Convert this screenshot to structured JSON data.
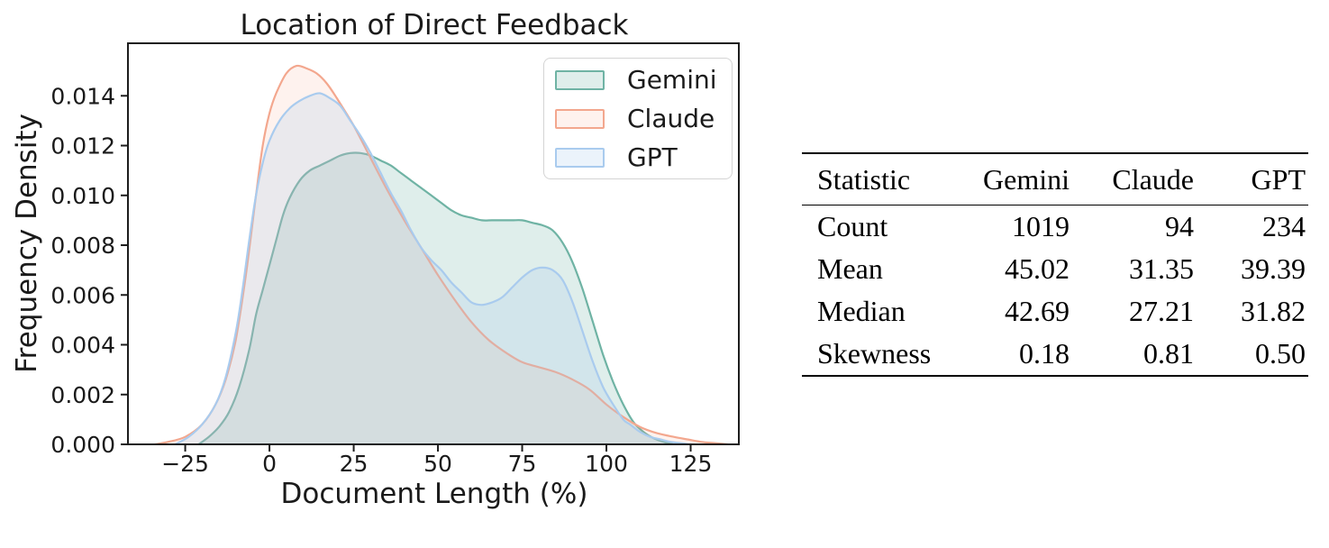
{
  "chart_data": {
    "type": "area",
    "title": "Location of Direct Feedback",
    "xlabel": "Document Length (%)",
    "ylabel": "Frequency Density",
    "xlim": [
      -42.0,
      139.3
    ],
    "ylim": [
      0,
      0.01611
    ],
    "grid": false,
    "legend_position": "upper right",
    "x_ticks": [
      -25,
      0,
      25,
      50,
      75,
      100,
      125
    ],
    "x_tick_labels": [
      "−25",
      "0",
      "25",
      "50",
      "75",
      "100",
      "125"
    ],
    "y_ticks": [
      0,
      0.002,
      0.004,
      0.006,
      0.008,
      0.01,
      0.012,
      0.014
    ],
    "y_tick_labels": [
      "0.000",
      "0.002",
      "0.004",
      "0.006",
      "0.008",
      "0.010",
      "0.012",
      "0.014"
    ],
    "series": [
      {
        "name": "Gemini",
        "stroke": "#6FB3A4",
        "fill": "rgba(111,179,164,0.22)",
        "peak": {
          "x": 26,
          "density": 0.0117
        },
        "points": [
          [
            -21,
            0
          ],
          [
            -18,
            0.0003
          ],
          [
            -15,
            0.0007
          ],
          [
            -12,
            0.0013
          ],
          [
            -9,
            0.0023
          ],
          [
            -6,
            0.0038
          ],
          [
            -4,
            0.0052
          ],
          [
            -2,
            0.0062
          ],
          [
            0,
            0.0072
          ],
          [
            2,
            0.0082
          ],
          [
            4,
            0.0092
          ],
          [
            6,
            0.0099
          ],
          [
            9,
            0.0106
          ],
          [
            12,
            0.011
          ],
          [
            15,
            0.0112
          ],
          [
            18,
            0.0114
          ],
          [
            21,
            0.0116
          ],
          [
            24,
            0.0117
          ],
          [
            27,
            0.0117
          ],
          [
            30,
            0.0116
          ],
          [
            33,
            0.0114
          ],
          [
            36,
            0.0112
          ],
          [
            39,
            0.0109
          ],
          [
            42,
            0.0106
          ],
          [
            45,
            0.0103
          ],
          [
            48,
            0.01
          ],
          [
            51,
            0.0097
          ],
          [
            54,
            0.0094
          ],
          [
            57,
            0.0092
          ],
          [
            60,
            0.0091
          ],
          [
            63,
            0.009
          ],
          [
            66,
            0.009
          ],
          [
            69,
            0.009
          ],
          [
            72,
            0.009
          ],
          [
            75,
            0.009
          ],
          [
            78,
            0.0089
          ],
          [
            81,
            0.0088
          ],
          [
            84,
            0.0086
          ],
          [
            87,
            0.0081
          ],
          [
            90,
            0.0073
          ],
          [
            93,
            0.0062
          ],
          [
            96,
            0.0049
          ],
          [
            99,
            0.0036
          ],
          [
            102,
            0.0025
          ],
          [
            105,
            0.0016
          ],
          [
            108,
            0.0009
          ],
          [
            111,
            0.0005
          ],
          [
            114,
            0.00025
          ],
          [
            117,
            0.0001
          ],
          [
            120,
            0
          ]
        ]
      },
      {
        "name": "Claude",
        "stroke": "#F3A78E",
        "fill": "rgba(244,154,123,0.13)",
        "peak": {
          "x": 9,
          "density": 0.0152
        },
        "points": [
          [
            -34,
            0
          ],
          [
            -30,
            0.0001
          ],
          [
            -25,
            0.0003
          ],
          [
            -20,
            0.0008
          ],
          [
            -16,
            0.0016
          ],
          [
            -13,
            0.0026
          ],
          [
            -10,
            0.0042
          ],
          [
            -7,
            0.0068
          ],
          [
            -4,
            0.01
          ],
          [
            -2,
            0.012
          ],
          [
            0,
            0.0133
          ],
          [
            2,
            0.0141
          ],
          [
            5,
            0.0149
          ],
          [
            8,
            0.0152
          ],
          [
            11,
            0.0151
          ],
          [
            14,
            0.0149
          ],
          [
            17,
            0.0145
          ],
          [
            20,
            0.0139
          ],
          [
            25,
            0.0128
          ],
          [
            30,
            0.0115
          ],
          [
            35,
            0.0102
          ],
          [
            40,
            0.009
          ],
          [
            45,
            0.0079
          ],
          [
            50,
            0.0068
          ],
          [
            55,
            0.0058
          ],
          [
            60,
            0.0049
          ],
          [
            65,
            0.0042
          ],
          [
            70,
            0.0037
          ],
          [
            75,
            0.0033
          ],
          [
            80,
            0.0031
          ],
          [
            85,
            0.0029
          ],
          [
            90,
            0.0026
          ],
          [
            95,
            0.0022
          ],
          [
            100,
            0.0016
          ],
          [
            105,
            0.0011
          ],
          [
            110,
            0.0007
          ],
          [
            115,
            0.00045
          ],
          [
            120,
            0.0003
          ],
          [
            124,
            0.0002
          ],
          [
            128,
            0.0001
          ],
          [
            132,
            5e-05
          ],
          [
            136,
            0
          ]
        ]
      },
      {
        "name": "GPT",
        "stroke": "#A9CBEE",
        "fill": "rgba(163,200,238,0.22)",
        "peak": {
          "x": 15,
          "density": 0.0141
        },
        "points": [
          [
            -28,
            0
          ],
          [
            -24,
            0.0003
          ],
          [
            -20,
            0.0008
          ],
          [
            -16,
            0.0016
          ],
          [
            -13,
            0.0027
          ],
          [
            -10,
            0.0045
          ],
          [
            -8,
            0.0062
          ],
          [
            -6,
            0.0082
          ],
          [
            -4,
            0.01
          ],
          [
            -2,
            0.0113
          ],
          [
            0,
            0.0122
          ],
          [
            3,
            0.013
          ],
          [
            6,
            0.0135
          ],
          [
            9,
            0.0138
          ],
          [
            12,
            0.014
          ],
          [
            15,
            0.0141
          ],
          [
            18,
            0.0139
          ],
          [
            21,
            0.0136
          ],
          [
            24,
            0.013
          ],
          [
            27,
            0.0124
          ],
          [
            30,
            0.0117
          ],
          [
            33,
            0.0109
          ],
          [
            36,
            0.0101
          ],
          [
            39,
            0.0094
          ],
          [
            42,
            0.0086
          ],
          [
            45,
            0.0079
          ],
          [
            48,
            0.0074
          ],
          [
            51,
            0.007
          ],
          [
            54,
            0.0065
          ],
          [
            57,
            0.0061
          ],
          [
            60,
            0.0057
          ],
          [
            63,
            0.0056
          ],
          [
            66,
            0.0057
          ],
          [
            69,
            0.0059
          ],
          [
            72,
            0.0063
          ],
          [
            75,
            0.0067
          ],
          [
            78,
            0.007
          ],
          [
            81,
            0.0071
          ],
          [
            84,
            0.007
          ],
          [
            87,
            0.0066
          ],
          [
            90,
            0.0057
          ],
          [
            93,
            0.0045
          ],
          [
            96,
            0.0033
          ],
          [
            99,
            0.0023
          ],
          [
            102,
            0.0016
          ],
          [
            105,
            0.001
          ],
          [
            107,
            0.0008
          ],
          [
            110,
            0.0005
          ],
          [
            113,
            0.0003
          ],
          [
            116,
            0.0002
          ],
          [
            119,
            0.0001
          ],
          [
            122,
            5e-05
          ],
          [
            125,
            0
          ]
        ]
      }
    ]
  },
  "table": {
    "columns": [
      "Statistic",
      "Gemini",
      "Claude",
      "GPT"
    ],
    "rows": [
      [
        "Count",
        "1019",
        "94",
        "234"
      ],
      [
        "Mean",
        "45.02",
        "31.35",
        "39.39"
      ],
      [
        "Median",
        "42.69",
        "27.21",
        "31.82"
      ],
      [
        "Skewness",
        "0.18",
        "0.81",
        "0.50"
      ]
    ]
  }
}
